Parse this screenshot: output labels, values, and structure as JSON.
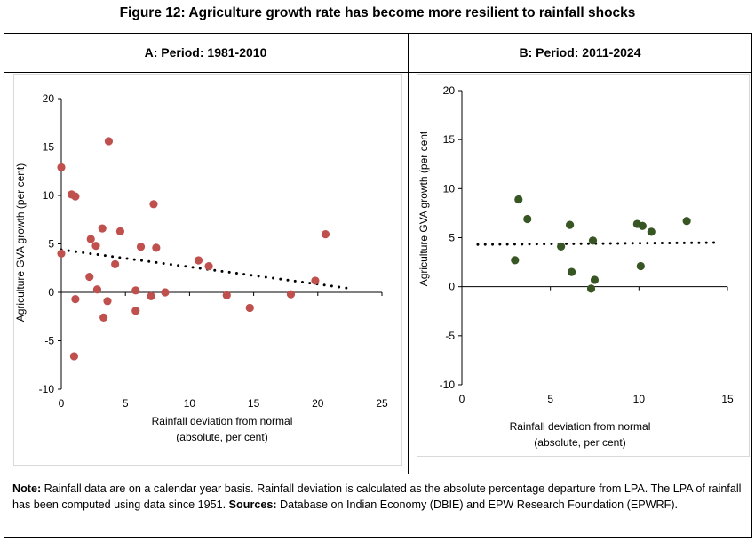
{
  "title": "Figure 12: Agriculture growth rate has become more resilient to rainfall shocks",
  "note": {
    "note_label": "Note:",
    "note_text": " Rainfall data are on a calendar year basis. Rainfall deviation is calculated as the absolute percentage departure from LPA. The LPA of rainfall has been computed using data since 1951. ",
    "sources_label": "Sources:",
    "sources_text": " Database on Indian Economy (DBIE) and EPW Research Foundation (EPWRF)."
  },
  "chart_data": [
    {
      "type": "scatter",
      "title": "A: Period: 1981-2010",
      "xlabel": [
        "Rainfall deviation from normal",
        "(absolute, per cent)"
      ],
      "ylabel": "Agriculture GVA growth (per cent)",
      "xlim": [
        0,
        25
      ],
      "ylim": [
        -10,
        20
      ],
      "xticks": [
        0,
        5,
        10,
        15,
        20,
        25
      ],
      "yticks": [
        -10,
        -5,
        0,
        5,
        10,
        15,
        20
      ],
      "grid": false,
      "marker_color": "#c0504d",
      "points": [
        [
          0,
          12.9
        ],
        [
          0,
          4.0
        ],
        [
          0.8,
          10.1
        ],
        [
          1.1,
          9.9
        ],
        [
          1.1,
          -0.7
        ],
        [
          1.0,
          -6.6
        ],
        [
          3.7,
          15.6
        ],
        [
          3.2,
          6.6
        ],
        [
          2.3,
          5.5
        ],
        [
          2.7,
          4.8
        ],
        [
          2.2,
          1.6
        ],
        [
          2.8,
          0.3
        ],
        [
          3.6,
          -0.9
        ],
        [
          3.3,
          -2.6
        ],
        [
          4.6,
          6.3
        ],
        [
          4.2,
          2.9
        ],
        [
          7.2,
          9.1
        ],
        [
          6.2,
          4.7
        ],
        [
          7.4,
          4.6
        ],
        [
          5.8,
          0.2
        ],
        [
          5.8,
          -1.9
        ],
        [
          7.0,
          -0.4
        ],
        [
          8.1,
          0.0
        ],
        [
          10.7,
          3.3
        ],
        [
          11.5,
          2.7
        ],
        [
          12.9,
          -0.3
        ],
        [
          14.7,
          -1.6
        ],
        [
          17.9,
          -0.2
        ],
        [
          19.8,
          1.2
        ],
        [
          20.6,
          6.0
        ]
      ],
      "trendline": {
        "style": "dotted",
        "from": [
          0,
          4.4
        ],
        "to": [
          22.5,
          0.4
        ]
      }
    },
    {
      "type": "scatter",
      "title": "B: Period: 2011-2024",
      "xlabel": [
        "Rainfall deviation from normal",
        "(absolute, per cent)"
      ],
      "ylabel": "Agriculture GVA growth (per cent",
      "xlim": [
        0,
        15
      ],
      "ylim": [
        -10,
        20
      ],
      "xticks": [
        0,
        5,
        10,
        15
      ],
      "yticks": [
        -10,
        -5,
        0,
        5,
        10,
        15,
        20
      ],
      "grid": false,
      "marker_color": "#375623",
      "points": [
        [
          3.2,
          8.9
        ],
        [
          3.7,
          6.9
        ],
        [
          3.0,
          2.7
        ],
        [
          6.1,
          6.3
        ],
        [
          5.6,
          4.1
        ],
        [
          6.2,
          1.5
        ],
        [
          7.4,
          4.7
        ],
        [
          7.5,
          0.7
        ],
        [
          7.3,
          -0.2
        ],
        [
          9.9,
          6.4
        ],
        [
          10.2,
          6.2
        ],
        [
          10.7,
          5.6
        ],
        [
          10.1,
          2.1
        ],
        [
          12.7,
          6.7
        ]
      ],
      "trendline": {
        "style": "dotted",
        "from": [
          0.9,
          4.3
        ],
        "to": [
          14.5,
          4.5
        ]
      }
    }
  ]
}
